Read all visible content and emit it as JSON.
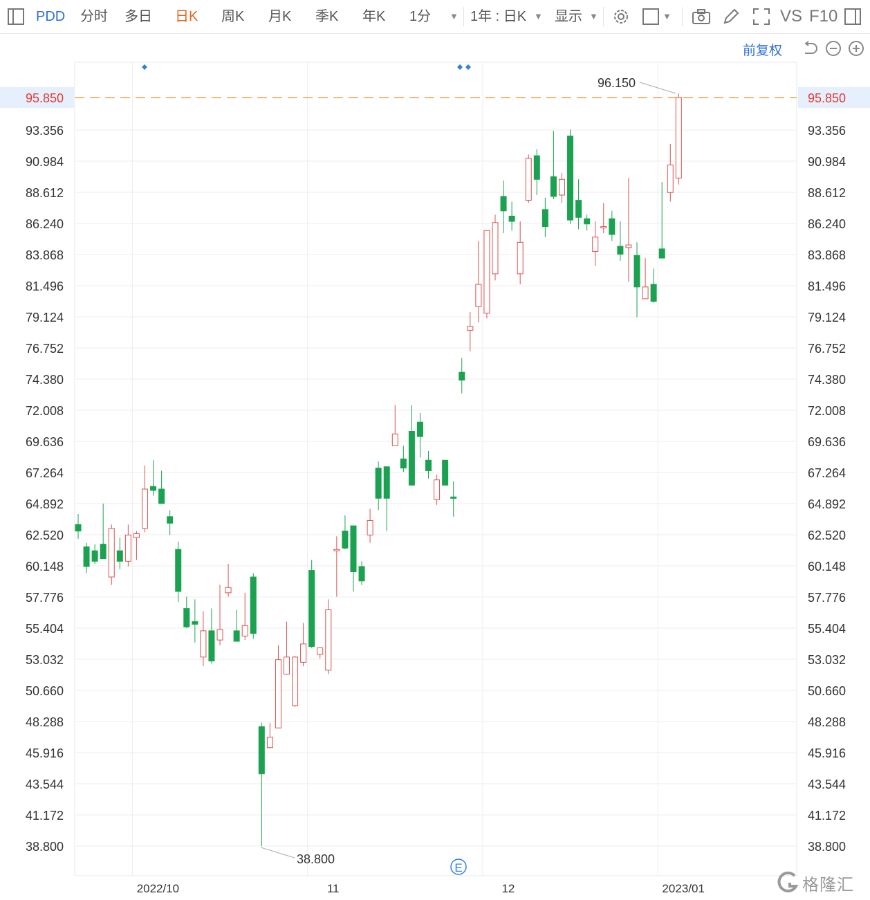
{
  "toolbar": {
    "symbol": "PDD",
    "tabs": [
      "分时",
      "多日",
      "日K",
      "周K",
      "月K",
      "季K",
      "年K",
      "1分"
    ],
    "active_tab": "日K",
    "range_label": "1年 : 日K",
    "display_label": "显示",
    "vs_label": "VS",
    "f10_label": "F10"
  },
  "right_controls": {
    "adjust_label": "前复权"
  },
  "markers": {
    "earnings_label": "E"
  },
  "watermark": {
    "text": "格隆汇"
  },
  "colors": {
    "up": "#d9534f",
    "down": "#1aa251",
    "current_line": "#f0a040",
    "current_text": "#e53935",
    "accent": "#2f6fd6"
  },
  "chart_data": {
    "type": "candlestick",
    "symbol": "PDD",
    "y_range": [
      38.8,
      96.15
    ],
    "y_ticks": [
      "38.800",
      "41.172",
      "43.544",
      "45.916",
      "48.288",
      "50.660",
      "53.032",
      "55.404",
      "57.776",
      "60.148",
      "62.520",
      "64.892",
      "67.264",
      "69.636",
      "72.008",
      "74.380",
      "76.752",
      "79.124",
      "81.496",
      "83.868",
      "86.240",
      "88.612",
      "90.984",
      "93.356"
    ],
    "x_labels": [
      {
        "label": "2022/10",
        "index": 7
      },
      {
        "label": "11",
        "index": 28
      },
      {
        "label": "12",
        "index": 49
      },
      {
        "label": "2023/01",
        "index": 70
      }
    ],
    "current_price": "95.850",
    "high_label": "96.150",
    "low_label": "38.800",
    "candles": [
      [
        63.3,
        64.1,
        62.2,
        62.8
      ],
      [
        61.6,
        61.9,
        59.6,
        60.1
      ],
      [
        61.3,
        61.8,
        60.3,
        60.5
      ],
      [
        61.8,
        64.9,
        60.9,
        60.7
      ],
      [
        59.3,
        63.3,
        58.7,
        63.0
      ],
      [
        61.3,
        62.3,
        59.9,
        60.5
      ],
      [
        60.5,
        63.3,
        60.1,
        62.5
      ],
      [
        62.3,
        62.8,
        60.6,
        62.6
      ],
      [
        63.0,
        67.8,
        62.7,
        66.0
      ],
      [
        66.2,
        68.2,
        65.5,
        65.9
      ],
      [
        66.0,
        67.4,
        64.9,
        64.9
      ],
      [
        63.9,
        64.4,
        62.5,
        63.4
      ],
      [
        61.4,
        62.0,
        57.4,
        58.2
      ],
      [
        56.9,
        57.8,
        55.4,
        55.5
      ],
      [
        55.9,
        57.6,
        54.3,
        55.7
      ],
      [
        53.2,
        56.7,
        52.5,
        55.2
      ],
      [
        55.2,
        56.9,
        52.7,
        52.9
      ],
      [
        54.5,
        58.7,
        54.1,
        55.3
      ],
      [
        58.1,
        60.3,
        57.8,
        58.5
      ],
      [
        55.2,
        56.8,
        54.5,
        54.4
      ],
      [
        54.8,
        58.1,
        54.5,
        55.6
      ],
      [
        59.3,
        59.6,
        54.6,
        55.0
      ],
      [
        47.9,
        48.2,
        38.8,
        44.3
      ],
      [
        46.3,
        48.2,
        46.3,
        47.1
      ],
      [
        47.8,
        54.1,
        47.8,
        53.0
      ],
      [
        51.9,
        55.9,
        51.9,
        53.2
      ],
      [
        49.5,
        53.3,
        49.4,
        53.2
      ],
      [
        52.8,
        55.8,
        52.5,
        54.2
      ],
      [
        59.8,
        60.6,
        53.9,
        54.0
      ],
      [
        53.4,
        53.9,
        53.1,
        53.9
      ],
      [
        52.2,
        57.6,
        51.9,
        56.8
      ],
      [
        61.3,
        62.4,
        57.8,
        61.4
      ],
      [
        62.8,
        64.0,
        61.4,
        61.5
      ],
      [
        63.2,
        63.2,
        58.2,
        59.7
      ],
      [
        60.1,
        60.5,
        58.7,
        59.0
      ],
      [
        62.5,
        64.5,
        61.9,
        63.6
      ],
      [
        67.6,
        68.1,
        64.4,
        65.3
      ],
      [
        67.7,
        67.7,
        62.8,
        65.3
      ],
      [
        69.3,
        72.4,
        69.3,
        70.2
      ],
      [
        68.3,
        69.3,
        67.3,
        67.6
      ],
      [
        70.4,
        72.4,
        66.4,
        66.3
      ],
      [
        71.1,
        71.8,
        68.4,
        70.0
      ],
      [
        68.2,
        68.9,
        66.8,
        67.4
      ],
      [
        65.2,
        67.1,
        64.8,
        66.7
      ],
      [
        68.2,
        68.2,
        66.6,
        66.3
      ],
      [
        65.4,
        66.6,
        63.9,
        65.3
      ],
      [
        74.9,
        76.0,
        73.3,
        74.3
      ],
      [
        78.1,
        79.5,
        76.5,
        78.4
      ],
      [
        79.9,
        84.9,
        78.7,
        81.6
      ],
      [
        79.4,
        85.7,
        79.0,
        85.7
      ],
      [
        82.4,
        86.9,
        81.9,
        86.3
      ],
      [
        88.3,
        89.5,
        85.5,
        87.2
      ],
      [
        86.8,
        87.9,
        85.7,
        86.4
      ],
      [
        82.4,
        86.4,
        81.6,
        84.8
      ],
      [
        88.0,
        91.5,
        87.8,
        91.2
      ],
      [
        91.4,
        91.9,
        88.4,
        89.6
      ],
      [
        87.3,
        88.2,
        85.2,
        86.0
      ],
      [
        89.8,
        93.3,
        88.1,
        88.3
      ],
      [
        88.4,
        90.1,
        87.8,
        89.6
      ],
      [
        92.9,
        93.4,
        86.2,
        86.5
      ],
      [
        88.0,
        89.6,
        85.8,
        86.7
      ],
      [
        86.6,
        86.9,
        85.7,
        86.2
      ],
      [
        84.1,
        86.4,
        83.0,
        85.2
      ],
      [
        85.9,
        87.8,
        85.5,
        86.0
      ],
      [
        86.6,
        87.2,
        84.9,
        85.4
      ],
      [
        84.5,
        86.4,
        83.4,
        83.9
      ],
      [
        84.4,
        89.7,
        81.8,
        84.6
      ],
      [
        83.8,
        84.8,
        79.1,
        81.4
      ],
      [
        80.5,
        83.6,
        80.5,
        81.4
      ],
      [
        81.6,
        82.8,
        80.2,
        80.3
      ],
      [
        84.3,
        89.4,
        83.9,
        83.6
      ],
      [
        88.6,
        92.3,
        87.9,
        90.7
      ],
      [
        89.7,
        96.15,
        89.2,
        95.85
      ]
    ]
  }
}
